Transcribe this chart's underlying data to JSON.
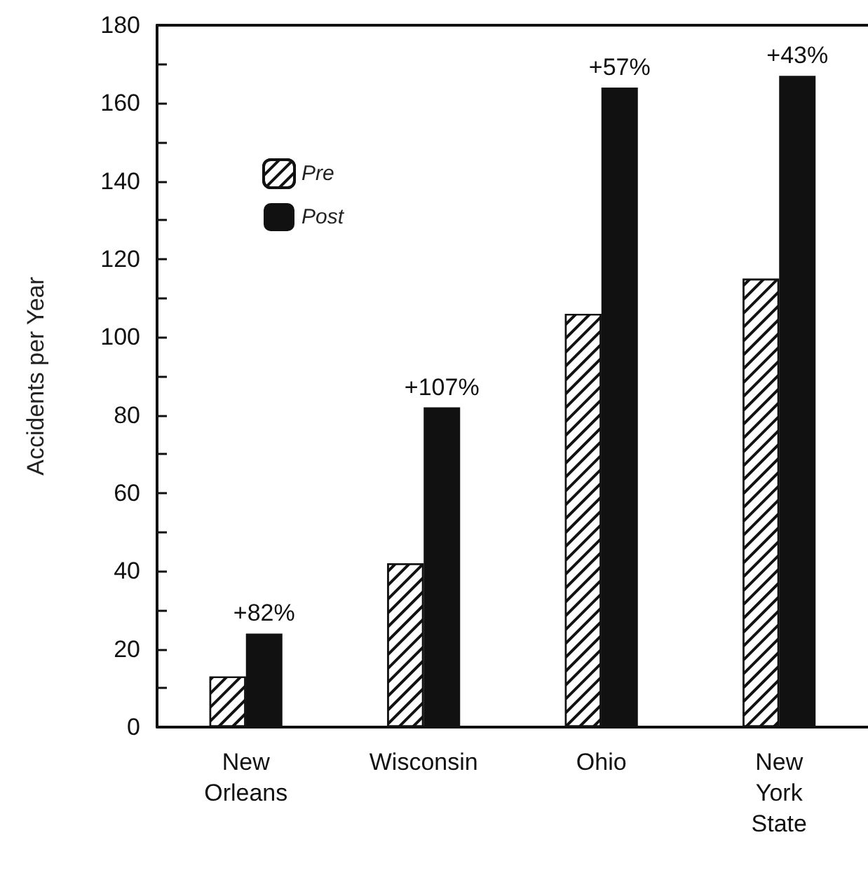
{
  "chart_data": {
    "type": "bar",
    "ylabel": "Accidents per Year",
    "categories": [
      "New\nOrleans",
      "Wisconsin",
      "Ohio",
      "New\nYork\nState"
    ],
    "series": [
      {
        "name": "Pre",
        "color": "#ffffff",
        "values": [
          13,
          42,
          106,
          115
        ]
      },
      {
        "name": "Post",
        "color": "#111111",
        "values": [
          24,
          82,
          164,
          167
        ]
      }
    ],
    "ylim": [
      0,
      180
    ],
    "yticks": [
      0,
      {
        "value": 10,
        "label": null
      },
      20,
      {
        "value": 30,
        "label": null
      },
      40,
      {
        "value": 50,
        "label": null
      },
      60,
      {
        "value": 70,
        "label": null
      },
      80,
      {
        "value": 90,
        "label": null
      },
      100,
      {
        "value": 110,
        "label": null
      },
      120,
      {
        "value": 130,
        "label": null
      },
      140,
      {
        "value": 150,
        "label": null
      },
      160,
      {
        "value": 170,
        "label": null
      },
      180
    ],
    "annotations": [
      {
        "text": "+82%",
        "x": "New\nOrleans",
        "y": 24
      },
      {
        "text": "+107%",
        "x": "Wisconsin",
        "y": 82
      },
      {
        "text": "+57%",
        "x": "Ohio",
        "y": 164
      },
      {
        "text": "+43%",
        "x": "New\nYork\nState",
        "y": 167
      }
    ],
    "grid": false,
    "legend": "top left"
  }
}
